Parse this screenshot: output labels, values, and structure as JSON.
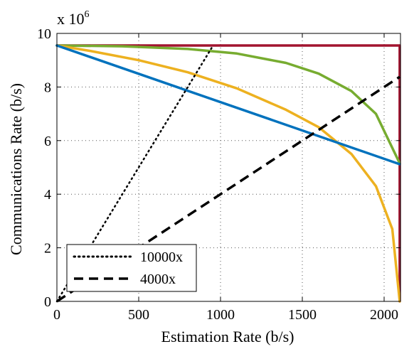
{
  "chart_data": {
    "type": "line",
    "xlabel": "Estimation Rate (b/s)",
    "ylabel": "Communications Rate (b/s)",
    "y_multiplier_label": "x 10",
    "y_multiplier_exponent": "6",
    "xlim": [
      0,
      2100
    ],
    "ylim": [
      0,
      10
    ],
    "xticks": [
      0,
      500,
      1000,
      1500,
      2000
    ],
    "yticks": [
      0,
      2,
      4,
      6,
      8,
      10
    ],
    "xtick_labels": [
      "0",
      "500",
      "1000",
      "1500",
      "2000"
    ],
    "ytick_labels": [
      "0",
      "2",
      "4",
      "6",
      "8",
      "10"
    ],
    "grid": true,
    "legend_position": "bottom-left",
    "series": [
      {
        "color": "#A2142F",
        "style": "solid",
        "points": [
          [
            0,
            9.55
          ],
          [
            2095,
            9.55
          ],
          [
            2095,
            0
          ]
        ]
      },
      {
        "color": "#77AC30",
        "style": "solid",
        "points": [
          [
            0,
            9.55
          ],
          [
            400,
            9.52
          ],
          [
            800,
            9.42
          ],
          [
            1100,
            9.25
          ],
          [
            1400,
            8.9
          ],
          [
            1600,
            8.5
          ],
          [
            1800,
            7.85
          ],
          [
            1950,
            7.0
          ],
          [
            2095,
            5.15
          ]
        ]
      },
      {
        "color": "#EDB120",
        "style": "solid",
        "points": [
          [
            0,
            9.55
          ],
          [
            200,
            9.35
          ],
          [
            500,
            9.0
          ],
          [
            800,
            8.55
          ],
          [
            1100,
            7.95
          ],
          [
            1400,
            7.15
          ],
          [
            1600,
            6.5
          ],
          [
            1800,
            5.5
          ],
          [
            1950,
            4.3
          ],
          [
            2050,
            2.7
          ],
          [
            2095,
            0
          ]
        ]
      },
      {
        "color": "#0072BD",
        "style": "solid",
        "points": [
          [
            0,
            9.55
          ],
          [
            2095,
            5.12
          ]
        ]
      },
      {
        "name": "10000x",
        "color": "#000000",
        "style": "dotted",
        "points": [
          [
            0,
            0
          ],
          [
            955,
            9.55
          ]
        ]
      },
      {
        "name": "4000x",
        "color": "#000000",
        "style": "dashed",
        "points": [
          [
            0,
            0
          ],
          [
            2095,
            8.38
          ]
        ]
      }
    ]
  }
}
